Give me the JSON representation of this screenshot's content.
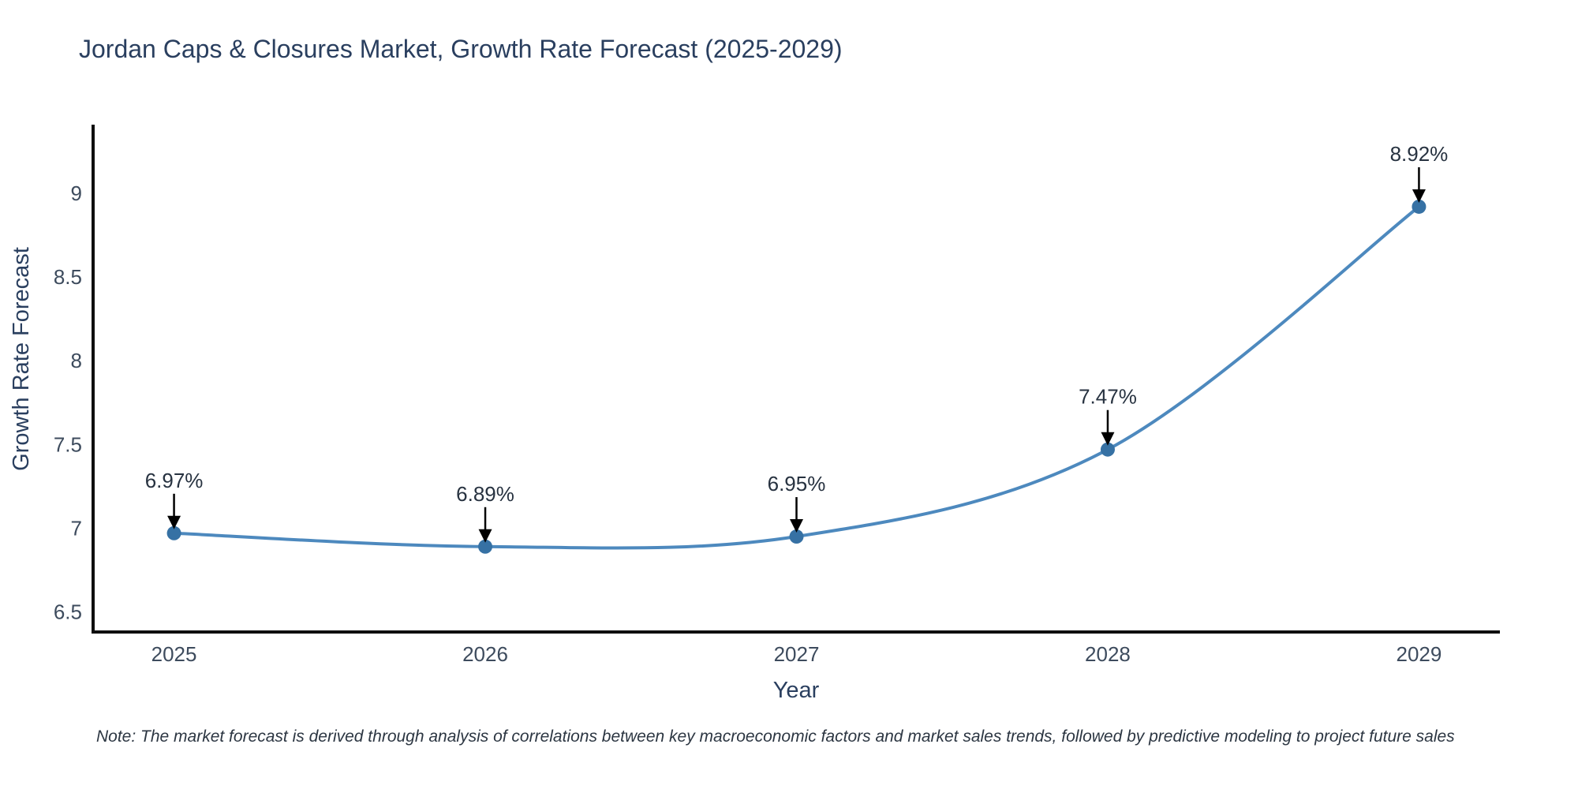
{
  "note": {
    "text": "Note: The market forecast is derived through analysis of correlations between key macroeconomic factors and market sales trends, followed by predictive modeling to project future sales"
  },
  "chart_data": {
    "type": "line",
    "title": "Jordan Caps & Closures Market, Growth Rate Forecast (2025-2029)",
    "xlabel": "Year",
    "ylabel": "Growth Rate Forecast",
    "x": [
      2025,
      2026,
      2027,
      2028,
      2029
    ],
    "series": [
      {
        "name": "Growth Rate Forecast",
        "values": [
          6.97,
          6.89,
          6.95,
          7.47,
          8.92
        ]
      }
    ],
    "point_labels": [
      "6.97%",
      "6.89%",
      "6.95%",
      "7.47%",
      "8.92%"
    ],
    "y_ticks": [
      6.5,
      7,
      7.5,
      8,
      8.5,
      9
    ],
    "x_ticks": [
      2025,
      2026,
      2027,
      2028,
      2029
    ],
    "ylim": [
      6.38,
      9.41
    ],
    "xlim": [
      2024.74,
      2029.26
    ],
    "grid": false,
    "legend": "none",
    "line_shape": "spline",
    "annotation_arrows": "down-to-point",
    "colors": {
      "line": "#4383ba",
      "marker": "#3671a4",
      "axis": "#0e0e0e",
      "title_text": "#2a3f5f",
      "axis_title_text": "#2a3f5f",
      "tick_text": "#3d4b5d",
      "annotation_text": "#273240",
      "arrow": "#000000",
      "note_text": "#2c3642",
      "background": "#ffffff"
    }
  }
}
